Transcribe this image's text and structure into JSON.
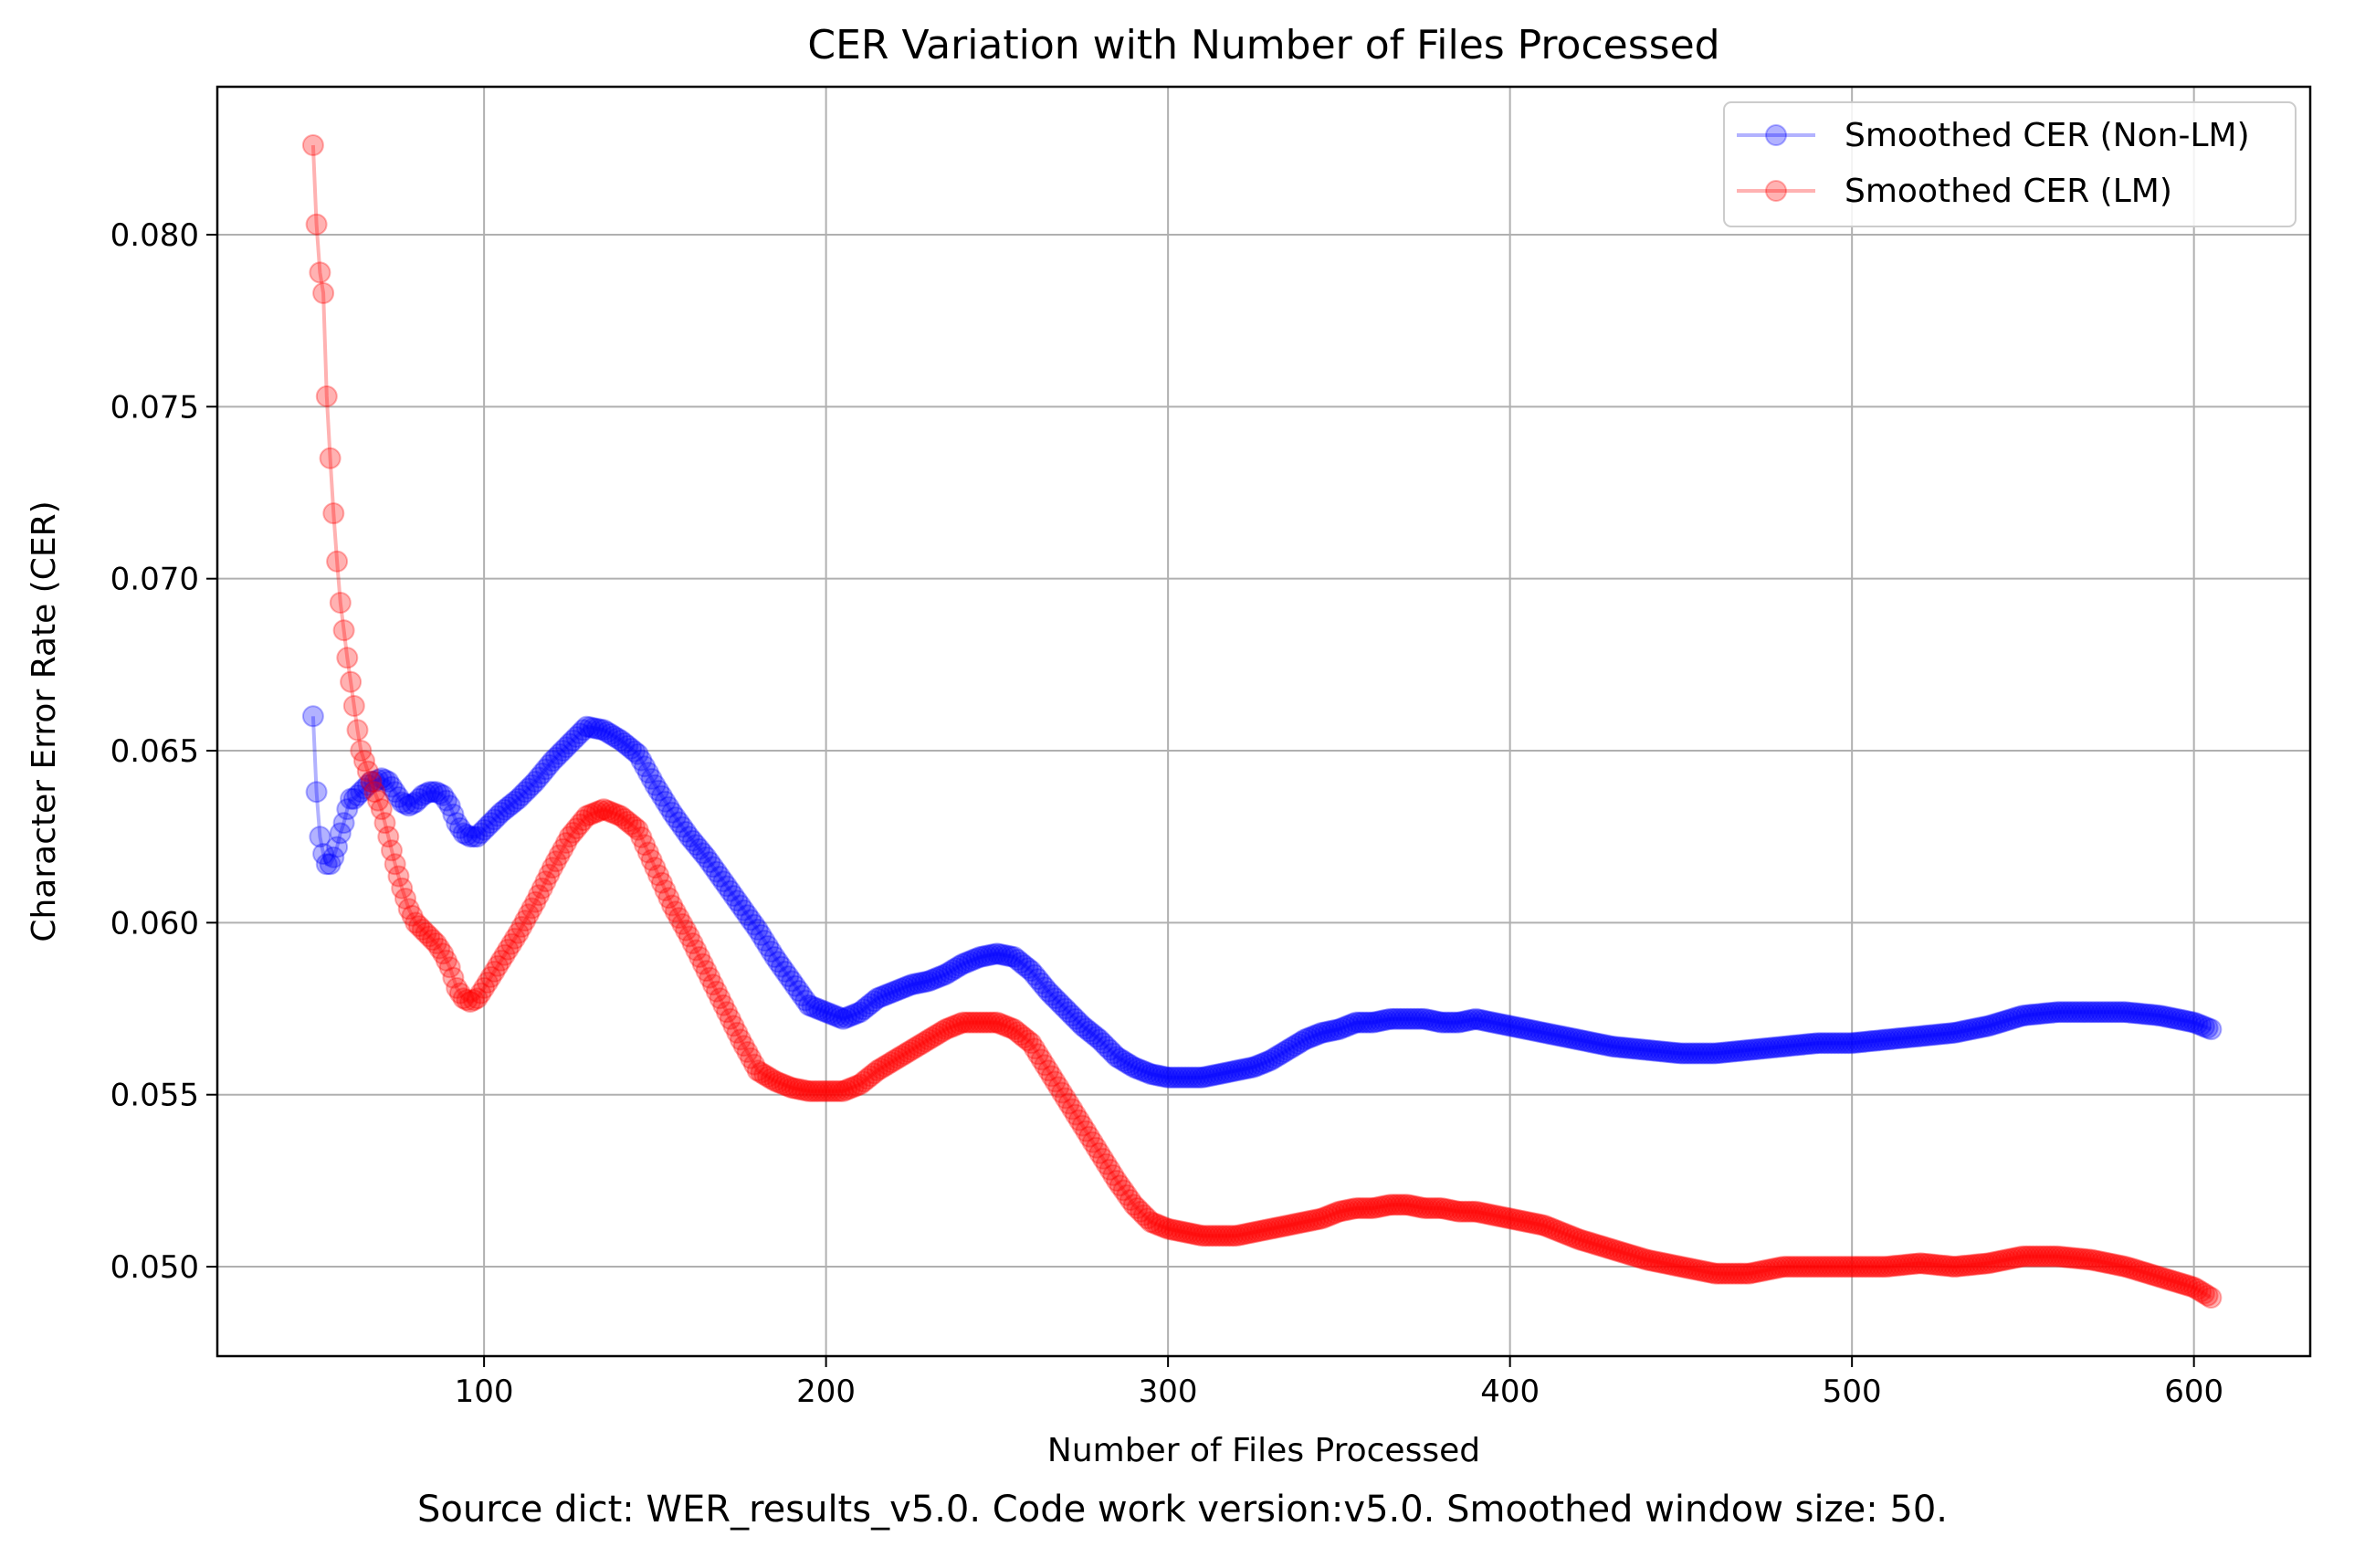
{
  "chart_data": {
    "type": "line",
    "title": "CER Variation with Number of Files Processed",
    "xlabel": "Number of Files Processed",
    "ylabel": "Character Error Rate (CER)",
    "xlim": [
      22,
      634
    ],
    "ylim": [
      0.0474,
      0.0843
    ],
    "xticks": [
      100,
      200,
      300,
      400,
      500,
      600
    ],
    "yticks": [
      0.05,
      0.055,
      0.06,
      0.065,
      0.07,
      0.075,
      0.08
    ],
    "xtick_labels": [
      "100",
      "200",
      "300",
      "400",
      "500",
      "600"
    ],
    "ytick_labels": [
      "0.050",
      "0.055",
      "0.060",
      "0.065",
      "0.070",
      "0.075",
      "0.080"
    ],
    "grid": true,
    "legend_position": "top-right",
    "x": [
      50,
      51,
      52,
      53,
      54,
      55,
      56,
      57,
      58,
      59,
      60,
      61,
      62,
      63,
      64,
      65,
      66,
      67,
      68,
      70,
      72,
      74,
      76,
      78,
      80,
      82,
      84,
      86,
      88,
      90,
      92,
      94,
      96,
      98,
      100,
      105,
      110,
      115,
      120,
      125,
      130,
      135,
      140,
      145,
      150,
      155,
      160,
      165,
      170,
      175,
      180,
      185,
      190,
      195,
      200,
      205,
      210,
      215,
      220,
      225,
      230,
      235,
      240,
      245,
      250,
      255,
      260,
      265,
      270,
      275,
      280,
      285,
      290,
      295,
      300,
      305,
      310,
      315,
      320,
      325,
      330,
      335,
      340,
      345,
      350,
      355,
      360,
      365,
      370,
      375,
      380,
      385,
      390,
      395,
      400,
      410,
      420,
      430,
      440,
      450,
      460,
      470,
      480,
      490,
      500,
      510,
      520,
      530,
      540,
      550,
      560,
      570,
      580,
      590,
      600,
      605
    ],
    "series": [
      {
        "name": "Smoothed CER (Non-LM)",
        "color": "#0000ff",
        "values": [
          0.066,
          0.0638,
          0.0625,
          0.062,
          0.0617,
          0.0617,
          0.0619,
          0.0622,
          0.0626,
          0.0629,
          0.0633,
          0.0636,
          0.0636,
          0.0637,
          0.0638,
          0.0639,
          0.064,
          0.0641,
          0.0641,
          0.0642,
          0.0641,
          0.0638,
          0.0635,
          0.0634,
          0.0635,
          0.0637,
          0.0638,
          0.0638,
          0.0637,
          0.0634,
          0.0629,
          0.0626,
          0.0625,
          0.0625,
          0.0627,
          0.0632,
          0.0636,
          0.0641,
          0.0647,
          0.0652,
          0.0657,
          0.0656,
          0.0653,
          0.0649,
          0.064,
          0.0632,
          0.0625,
          0.0619,
          0.0612,
          0.0605,
          0.0598,
          0.059,
          0.0583,
          0.0576,
          0.0574,
          0.0572,
          0.0574,
          0.0578,
          0.058,
          0.0582,
          0.0583,
          0.0585,
          0.0588,
          0.059,
          0.0591,
          0.059,
          0.0586,
          0.058,
          0.0575,
          0.057,
          0.0566,
          0.0561,
          0.0558,
          0.0556,
          0.0555,
          0.0555,
          0.0555,
          0.0556,
          0.0557,
          0.0558,
          0.056,
          0.0563,
          0.0566,
          0.0568,
          0.0569,
          0.0571,
          0.0571,
          0.0572,
          0.0572,
          0.0572,
          0.0571,
          0.0571,
          0.0572,
          0.0571,
          0.057,
          0.0568,
          0.0566,
          0.0564,
          0.0563,
          0.0562,
          0.0562,
          0.0563,
          0.0564,
          0.0565,
          0.0565,
          0.0566,
          0.0567,
          0.0568,
          0.057,
          0.0573,
          0.0574,
          0.0574,
          0.0574,
          0.0573,
          0.0571,
          0.0569
        ]
      },
      {
        "name": "Smoothed CER (LM)",
        "color": "#ff0000",
        "values": [
          0.0826,
          0.0803,
          0.0789,
          0.0783,
          0.0753,
          0.0735,
          0.0719,
          0.0705,
          0.0693,
          0.0685,
          0.0677,
          0.067,
          0.0663,
          0.0656,
          0.065,
          0.0647,
          0.0644,
          0.0641,
          0.0638,
          0.0633,
          0.0625,
          0.0617,
          0.061,
          0.0604,
          0.06,
          0.0598,
          0.0596,
          0.0594,
          0.0591,
          0.0587,
          0.0581,
          0.0578,
          0.0577,
          0.0578,
          0.0581,
          0.0589,
          0.0597,
          0.0606,
          0.0616,
          0.0625,
          0.0631,
          0.0633,
          0.0631,
          0.0627,
          0.0616,
          0.0605,
          0.0596,
          0.0586,
          0.0576,
          0.0566,
          0.0557,
          0.0554,
          0.0552,
          0.0551,
          0.0551,
          0.0551,
          0.0553,
          0.0557,
          0.056,
          0.0563,
          0.0566,
          0.0569,
          0.0571,
          0.0571,
          0.0571,
          0.0569,
          0.0565,
          0.0557,
          0.0549,
          0.0541,
          0.0533,
          0.0525,
          0.0518,
          0.0513,
          0.0511,
          0.051,
          0.0509,
          0.0509,
          0.0509,
          0.051,
          0.0511,
          0.0512,
          0.0513,
          0.0514,
          0.0516,
          0.0517,
          0.0517,
          0.0518,
          0.0518,
          0.0517,
          0.0517,
          0.0516,
          0.0516,
          0.0515,
          0.0514,
          0.0512,
          0.0508,
          0.0505,
          0.0502,
          0.05,
          0.0498,
          0.0498,
          0.05,
          0.05,
          0.05,
          0.05,
          0.0501,
          0.05,
          0.0501,
          0.0503,
          0.0503,
          0.0502,
          0.05,
          0.0497,
          0.0494,
          0.0491
        ]
      }
    ]
  },
  "caption": "Source dict: WER_results_v5.0. Code work version:v5.0. Smoothed window size: 50."
}
